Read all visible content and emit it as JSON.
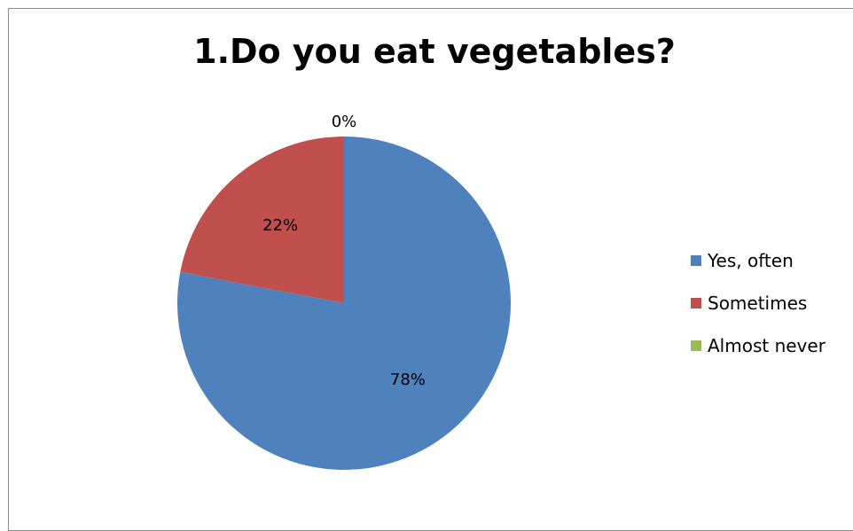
{
  "chart_data": {
    "type": "pie",
    "title": "1.Do you eat vegetables?",
    "slices": [
      {
        "label": "Yes, often",
        "value": 78,
        "display": "78%",
        "color": "#4f81bd"
      },
      {
        "label": "Sometimes",
        "value": 22,
        "display": "22%",
        "color": "#c0504d"
      },
      {
        "label": "Almost never",
        "value": 0,
        "display": "0%",
        "color": "#9bbb59"
      }
    ],
    "start_angle": "12 o'clock",
    "direction": "clockwise",
    "legend_position": "right"
  }
}
